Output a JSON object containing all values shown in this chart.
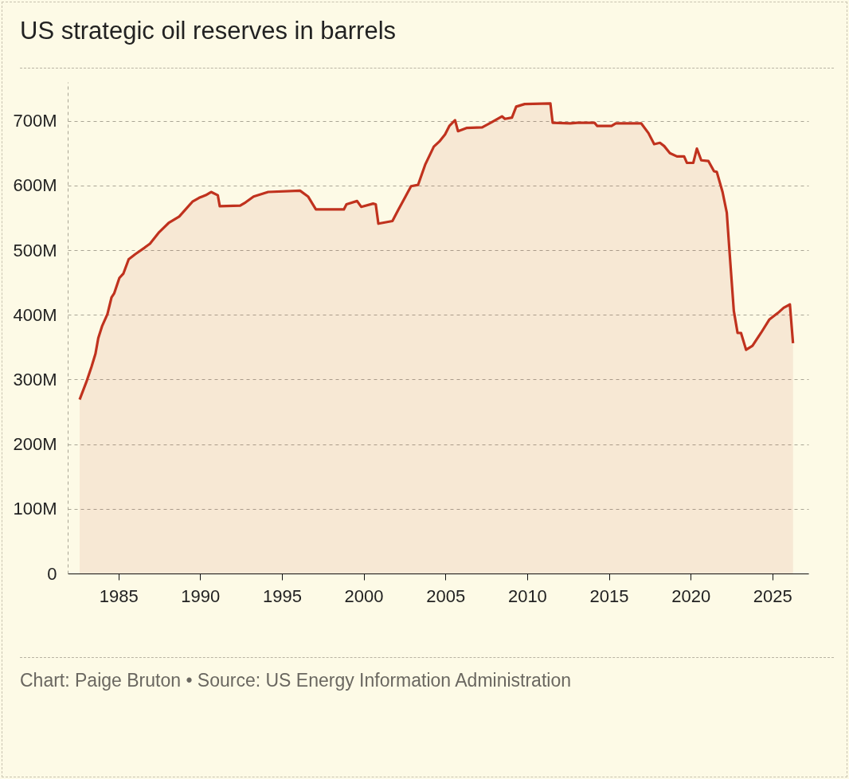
{
  "chart_data": {
    "type": "area",
    "title": "US strategic oil reserves in barrels",
    "annotations": [
      "Chart: Paige Bruton • Source: US Energy Information Administration"
    ],
    "x": [
      1982.63,
      1983.04,
      1983.36,
      1983.6,
      1983.77,
      1984.01,
      1984.33,
      1984.58,
      1984.74,
      1985.06,
      1985.31,
      1985.63,
      1986.04,
      1986.61,
      1986.93,
      1987.5,
      1988.07,
      1988.72,
      1989.53,
      1989.94,
      1990.34,
      1990.67,
      1991.08,
      1991.2,
      1992.45,
      1992.78,
      1993.27,
      1994.16,
      1996.11,
      1996.6,
      1997.08,
      1998.79,
      1998.95,
      1999.6,
      1999.85,
      2000.58,
      2000.74,
      2000.9,
      2001.76,
      2002.11,
      2002.54,
      2002.9,
      2003.33,
      2003.76,
      2004.29,
      2004.63,
      2004.98,
      2005.24,
      2005.59,
      2005.77,
      2006.29,
      2007.25,
      2007.77,
      2008.46,
      2008.64,
      2009.07,
      2009.33,
      2009.85,
      2011.42,
      2011.56,
      2012.64,
      2013.07,
      2014.12,
      2014.29,
      2015.16,
      2015.42,
      2016.98,
      2017.42,
      2017.77,
      2018.12,
      2018.38,
      2018.73,
      2019.16,
      2019.6,
      2019.77,
      2020.16,
      2020.38,
      2020.65,
      2021.08,
      2021.43,
      2021.6,
      2021.95,
      2022.21,
      2022.38,
      2022.64,
      2022.87,
      2023.08,
      2023.39,
      2023.78,
      2024.3,
      2024.82,
      2025.34,
      2025.69,
      2026.07,
      2026.26
    ],
    "series": [
      {
        "color": "#c0321e",
        "values": [
          269,
          296,
          320,
          340,
          364,
          383,
          401,
          427,
          433,
          457,
          464,
          486,
          494,
          504,
          510,
          528,
          542,
          552,
          575,
          581,
          585,
          590,
          585,
          568,
          569,
          574,
          583,
          590,
          592,
          583,
          563,
          563,
          571,
          576,
          567,
          572,
          571,
          541,
          545,
          562,
          582,
          599,
          601,
          632,
          660,
          668,
          679,
          692,
          701,
          684,
          689,
          690,
          697,
          707,
          703,
          705,
          722,
          726,
          727,
          697,
          696,
          697,
          697,
          692,
          692,
          696,
          696,
          681,
          664,
          666,
          661,
          650,
          645,
          645,
          635,
          635,
          657,
          639,
          638,
          622,
          621,
          590,
          558,
          497,
          406,
          372,
          372,
          346,
          352,
          372,
          393,
          403,
          411,
          416,
          356
        ]
      }
    ],
    "xlim": [
      1981.9,
      2027.2
    ],
    "xticks": [
      1985,
      1990,
      1995,
      2000,
      2005,
      2010,
      2015,
      2020,
      2025
    ],
    "ylim": [
      0,
      760
    ],
    "yticks": [
      0,
      {
        "value": 100,
        "label": "100M"
      },
      {
        "value": 200,
        "label": "200M"
      },
      {
        "value": 300,
        "label": "300M"
      },
      {
        "value": 400,
        "label": "400M"
      },
      {
        "value": 500,
        "label": "500M"
      },
      {
        "value": 600,
        "label": "600M"
      },
      {
        "value": 700,
        "label": "700M"
      }
    ],
    "grid": "y"
  }
}
